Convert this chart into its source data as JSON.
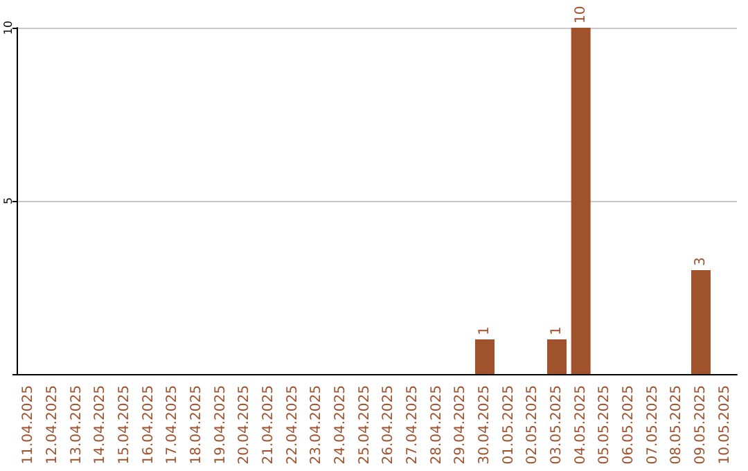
{
  "chart_data": {
    "type": "bar",
    "categories": [
      "11.04.2025",
      "12.04.2025",
      "13.04.2025",
      "14.04.2025",
      "15.04.2025",
      "16.04.2025",
      "17.04.2025",
      "18.04.2025",
      "19.04.2025",
      "20.04.2025",
      "21.04.2025",
      "22.04.2025",
      "23.04.2025",
      "24.04.2025",
      "25.04.2025",
      "26.04.2025",
      "27.04.2025",
      "28.04.2025",
      "29.04.2025",
      "30.04.2025",
      "01.05.2025",
      "02.05.2025",
      "03.05.2025",
      "04.05.2025",
      "05.05.2025",
      "06.05.2025",
      "07.05.2025",
      "08.05.2025",
      "09.05.2025",
      "10.05.2025"
    ],
    "values": [
      0,
      0,
      0,
      0,
      0,
      0,
      0,
      0,
      0,
      0,
      0,
      0,
      0,
      0,
      0,
      0,
      0,
      0,
      0,
      1,
      0,
      0,
      1,
      10,
      0,
      0,
      0,
      0,
      3,
      0
    ],
    "value_labels": [
      null,
      null,
      null,
      null,
      null,
      null,
      null,
      null,
      null,
      null,
      null,
      null,
      null,
      null,
      null,
      null,
      null,
      null,
      null,
      "1",
      null,
      null,
      "1",
      "10",
      null,
      null,
      null,
      null,
      "3",
      null
    ],
    "color": "#a0522d",
    "ylim": [
      0,
      10
    ],
    "yticks": [
      {
        "value": 0,
        "label": null
      },
      5,
      10
    ],
    "grid": "y"
  }
}
